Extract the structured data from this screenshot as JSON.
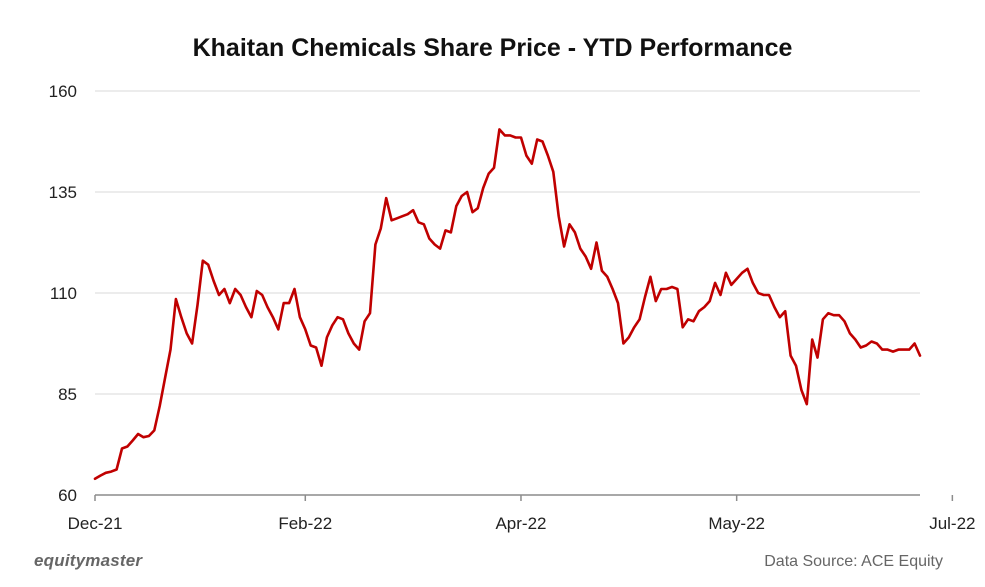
{
  "chart_data": {
    "type": "line",
    "title": "Khaitan Chemicals Share Price - YTD Performance",
    "xlabel": "",
    "ylabel": "",
    "ylim": [
      60,
      160
    ],
    "yticks": [
      60,
      85,
      110,
      135,
      160
    ],
    "xticks": [
      {
        "label": "Dec-21",
        "index": 0
      },
      {
        "label": "Feb-22",
        "index": 39
      },
      {
        "label": "Apr-22",
        "index": 79
      },
      {
        "label": "May-22",
        "index": 119
      },
      {
        "label": "Jul-22",
        "index": 159
      }
    ],
    "grid": "horizontal",
    "line_color": "#c00000",
    "series": [
      {
        "name": "Khaitan Chemicals",
        "values": [
          64.0,
          64.8,
          65.5,
          65.8,
          66.3,
          71.5,
          72.0,
          73.5,
          75.1,
          74.3,
          74.6,
          76.0,
          82.0,
          89.0,
          96.0,
          108.5,
          104.0,
          100.0,
          97.5,
          107.0,
          118.0,
          117.0,
          113.0,
          109.5,
          111.0,
          107.5,
          111.0,
          109.5,
          106.5,
          104.0,
          110.5,
          109.5,
          106.5,
          104.0,
          101.0,
          107.5,
          107.5,
          111.0,
          104.0,
          101.0,
          97.0,
          96.5,
          92.0,
          99.0,
          102.0,
          104.0,
          103.5,
          100.0,
          97.5,
          96.0,
          103.0,
          105.0,
          122.0,
          126.0,
          133.5,
          128.0,
          128.5,
          129.0,
          129.5,
          130.5,
          127.5,
          127.0,
          123.5,
          122.0,
          121.0,
          125.5,
          125.0,
          131.5,
          134.0,
          135.0,
          130.0,
          131.0,
          136.0,
          139.5,
          141.0,
          150.5,
          149.0,
          149.0,
          148.5,
          148.5,
          144.0,
          142.0,
          148.0,
          147.5,
          144.0,
          140.0,
          129.0,
          121.5,
          127.0,
          125.0,
          121.0,
          119.0,
          116.0,
          122.5,
          115.5,
          114.0,
          111.0,
          107.5,
          97.5,
          99.0,
          101.5,
          103.5,
          109.0,
          114.0,
          108.0,
          111.0,
          111.0,
          111.5,
          111.0,
          101.5,
          103.5,
          103.0,
          105.5,
          106.5,
          108.0,
          112.5,
          109.5,
          115.0,
          112.0,
          113.5,
          115.0,
          116.0,
          112.5,
          110.0,
          109.5,
          109.5,
          106.5,
          104.0,
          105.5,
          94.5,
          92.0,
          86.0,
          82.5,
          98.5,
          94.0,
          103.5,
          105.0,
          104.5,
          104.5,
          103.0,
          100.0,
          98.5,
          96.5,
          97.0,
          98.0,
          97.5,
          96.0,
          96.0,
          95.5,
          96.0,
          96.0,
          96.0,
          97.5,
          94.5
        ]
      }
    ]
  },
  "footer": {
    "brand": "equitymaster",
    "source": "Data Source: ACE Equity"
  }
}
